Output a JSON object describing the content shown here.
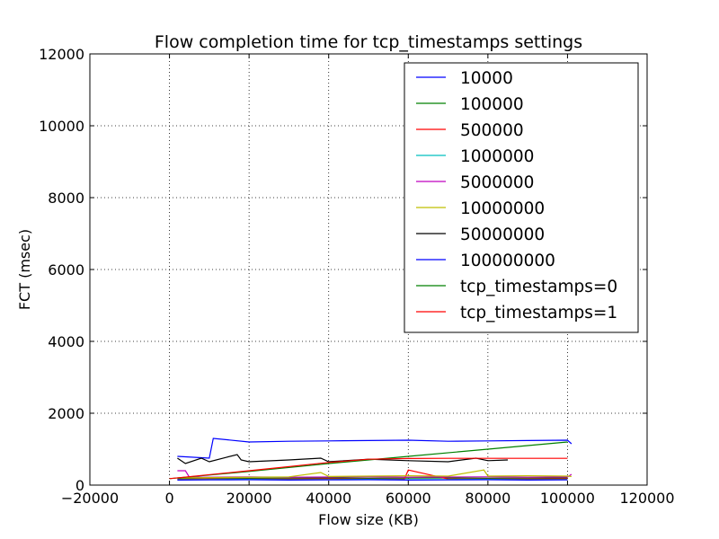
{
  "chart_data": {
    "type": "line",
    "title": "Flow completion time for tcp_timestamps settings",
    "xlabel": "Flow size (KB)",
    "ylabel": "FCT (msec)",
    "xlim": [
      -20000,
      120000
    ],
    "ylim": [
      0,
      12000
    ],
    "x_ticks": [
      -20000,
      0,
      20000,
      40000,
      60000,
      80000,
      100000,
      120000
    ],
    "x_tick_labels": [
      "−20000",
      "0",
      "20000",
      "40000",
      "60000",
      "80000",
      "100000",
      "120000"
    ],
    "y_ticks": [
      0,
      2000,
      4000,
      6000,
      8000,
      10000,
      12000
    ],
    "y_tick_labels": [
      "0",
      "2000",
      "4000",
      "6000",
      "8000",
      "10000",
      "12000"
    ],
    "grid": true,
    "legend_position": "top-right",
    "series": [
      {
        "name": "10000",
        "color": "#0000ff",
        "x": [
          2000,
          10000,
          11000,
          20000,
          30000,
          40000,
          50000,
          60000,
          70000,
          80000,
          90000,
          100000,
          101000
        ],
        "y": [
          800,
          750,
          1300,
          1200,
          1220,
          1230,
          1240,
          1250,
          1220,
          1230,
          1240,
          1250,
          1150
        ]
      },
      {
        "name": "100000",
        "color": "#008000",
        "x": [
          2000,
          10000,
          20000,
          30000,
          40000,
          50000,
          60000,
          70000,
          80000,
          90000,
          100000
        ],
        "y": [
          180,
          200,
          190,
          195,
          200,
          190,
          195,
          200,
          190,
          195,
          200
        ]
      },
      {
        "name": "500000",
        "color": "#ff0000",
        "x": [
          2000,
          10000,
          20000,
          30000,
          40000,
          50000,
          59000,
          60000,
          70000,
          80000,
          90000,
          100000
        ],
        "y": [
          160,
          170,
          165,
          170,
          175,
          165,
          170,
          420,
          170,
          165,
          170,
          175
        ]
      },
      {
        "name": "1000000",
        "color": "#00bfbf",
        "x": [
          2000,
          10000,
          20000,
          30000,
          40000,
          50000,
          60000,
          70000,
          80000,
          90000,
          100000
        ],
        "y": [
          150,
          155,
          160,
          150,
          155,
          160,
          150,
          155,
          160,
          150,
          155
        ]
      },
      {
        "name": "5000000",
        "color": "#bf00bf",
        "x": [
          2000,
          4000,
          5000,
          10000,
          20000,
          30000,
          40000,
          50000,
          60000,
          70000,
          80000,
          90000,
          100000,
          101000
        ],
        "y": [
          400,
          400,
          220,
          220,
          230,
          220,
          225,
          230,
          220,
          225,
          230,
          220,
          225,
          300
        ]
      },
      {
        "name": "10000000",
        "color": "#bfbf00",
        "x": [
          2000,
          10000,
          20000,
          30000,
          38000,
          40000,
          50000,
          60000,
          70000,
          79000,
          80000,
          90000,
          100000,
          101000
        ],
        "y": [
          200,
          210,
          220,
          230,
          350,
          240,
          250,
          260,
          250,
          420,
          250,
          260,
          250,
          240
        ]
      },
      {
        "name": "50000000",
        "color": "#000000",
        "x": [
          2000,
          4000,
          8000,
          10000,
          17000,
          18000,
          20000,
          30000,
          38000,
          40000,
          50000,
          60000,
          70000,
          77000,
          80000,
          85000
        ],
        "y": [
          750,
          600,
          750,
          650,
          850,
          700,
          650,
          700,
          750,
          650,
          720,
          680,
          650,
          750,
          680,
          700
        ]
      },
      {
        "name": "100000000",
        "color": "#0000ff",
        "x": [
          2000,
          10000,
          20000,
          30000,
          40000,
          50000,
          60000,
          70000,
          80000,
          90000,
          100000
        ],
        "y": [
          140,
          145,
          150,
          140,
          145,
          150,
          140,
          145,
          150,
          140,
          145
        ]
      },
      {
        "name": "tcp_timestamps=0",
        "color": "#008000",
        "x": [
          0,
          20000,
          40000,
          60000,
          80000,
          100000
        ],
        "y": [
          180,
          380,
          600,
          800,
          1000,
          1200
        ]
      },
      {
        "name": "tcp_timestamps=1",
        "color": "#ff0000",
        "x": [
          0,
          20000,
          40000,
          50000,
          60000,
          70000,
          80000,
          90000,
          100000
        ],
        "y": [
          180,
          400,
          630,
          720,
          740,
          745,
          745,
          745,
          745
        ]
      }
    ]
  }
}
